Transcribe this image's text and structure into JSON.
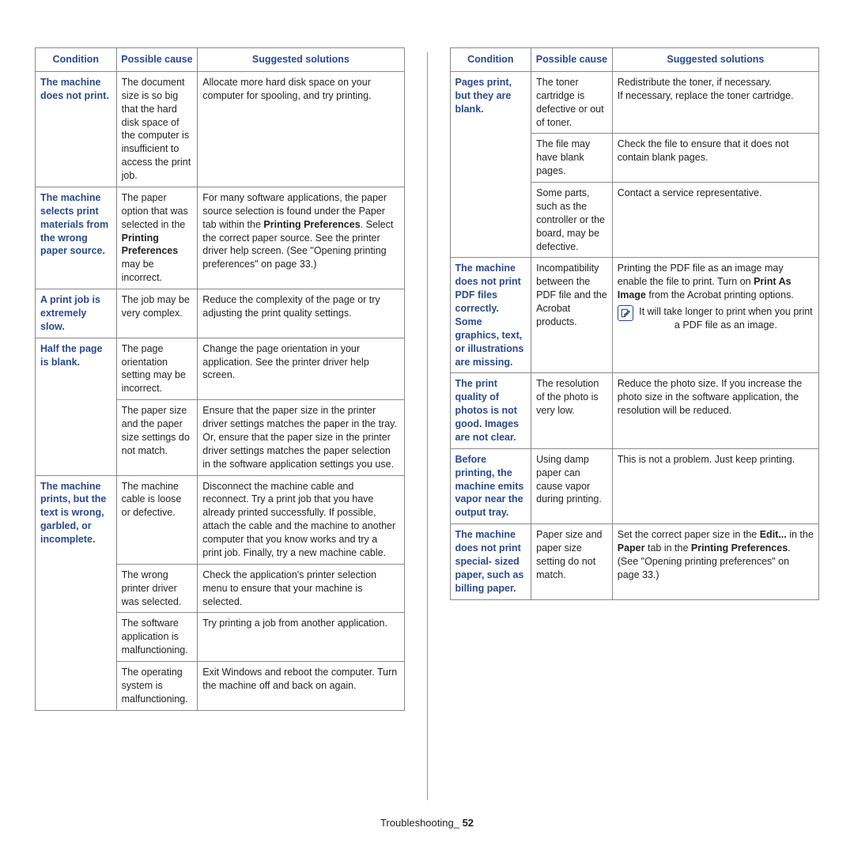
{
  "colors": {
    "heading": "#2a4a8a",
    "text": "#222222",
    "border": "#888888",
    "background": "#ffffff"
  },
  "fonts": {
    "family": "Arial, Helvetica, sans-serif",
    "body_size_pt": 9,
    "heading_size_pt": 9
  },
  "headers": {
    "condition": "Condition",
    "cause": "Possible cause",
    "solution": "Suggested solutions"
  },
  "footer": {
    "section": "Troubleshooting",
    "page": "52"
  },
  "left_table": [
    {
      "condition": "The machine does not print.",
      "rows": [
        {
          "cause": "The document size is so big that the hard disk space of the computer is insufficient to access the print job.",
          "solution": "Allocate more hard disk space on your computer for spooling, and try printing."
        }
      ]
    },
    {
      "condition": "The machine selects print materials from the wrong paper source.",
      "rows": [
        {
          "cause_html": "The paper option that was selected in the <b>Printing Preferences</b> may be incorrect.",
          "solution_html": "For many software applications, the paper source selection is found under the Paper tab within the <b>Printing Preferences</b>. Select the correct paper source. See the printer driver help screen. (See \"Opening printing preferences\" on page 33.)"
        }
      ]
    },
    {
      "condition": "A print job is extremely slow.",
      "rows": [
        {
          "cause": "The job may be very complex.",
          "solution": "Reduce the complexity of the page or try adjusting the print quality settings."
        }
      ]
    },
    {
      "condition": "Half the page is blank.",
      "rows": [
        {
          "cause": "The page orientation setting may be incorrect.",
          "solution": "Change the page orientation in your application. See the printer driver help screen."
        },
        {
          "cause": "The paper size and the paper size settings do not match.",
          "solution": "Ensure that the paper size in the printer driver settings matches the paper in the tray.\nOr, ensure that the paper size in the printer driver settings matches the paper selection in the software application settings you use."
        }
      ]
    },
    {
      "condition": "The machine prints, but the text is wrong, garbled, or incomplete.",
      "rows": [
        {
          "cause": "The machine cable is loose or defective.",
          "solution": "Disconnect the machine cable and reconnect. Try a print job that you have already printed successfully. If possible, attach the cable and the machine to another computer that you know works and try a print job. Finally, try a new machine cable."
        },
        {
          "cause": "The wrong printer driver was selected.",
          "solution": "Check the application's printer selection menu to ensure that your machine is selected."
        },
        {
          "cause": "The software application is malfunctioning.",
          "solution": "Try printing a job from another application."
        },
        {
          "cause": "The operating system is malfunctioning.",
          "solution": "Exit Windows and reboot the computer. Turn the machine off and back on again."
        }
      ]
    }
  ],
  "right_table": [
    {
      "condition": "Pages print, but they are blank.",
      "rows": [
        {
          "cause": "The toner cartridge is defective or out of toner.",
          "solution": "Redistribute the toner, if necessary.\nIf necessary, replace the toner cartridge."
        },
        {
          "cause": "The file may have blank pages.",
          "solution": "Check the file to ensure that it does not contain blank pages."
        },
        {
          "cause": "Some parts, such as the controller or the board, may be defective.",
          "solution": "Contact a service representative."
        }
      ]
    },
    {
      "condition": "The machine does not print PDF files correctly. Some graphics, text, or illustrations are missing.",
      "rows": [
        {
          "cause": "Incompatibility between the PDF file and the Acrobat products.",
          "solution_html": "Printing the PDF file as an image may enable the file to print. Turn on <b>Print As Image</b> from the Acrobat printing options.",
          "note": "It will take longer to print when you print a PDF file as an image."
        }
      ]
    },
    {
      "condition": "The print quality of photos is not good. Images are not clear.",
      "rows": [
        {
          "cause": "The resolution of the photo is very low.",
          "solution": "Reduce the photo size. If you increase the photo size in the software application, the resolution will be reduced."
        }
      ]
    },
    {
      "condition": "Before printing, the machine emits vapor near the output tray.",
      "rows": [
        {
          "cause": "Using damp paper can cause vapor during printing.",
          "solution": "This is not a problem. Just keep printing."
        }
      ]
    },
    {
      "condition": "The machine does not print special- sized paper, such as billing paper.",
      "rows": [
        {
          "cause": "Paper size and paper size setting do not match.",
          "solution_html": "Set the correct paper size in the <b>Edit...</b> in the <b>Paper</b> tab in the <b>Printing Preferences</b>. (See \"Opening printing preferences\" on page 33.)"
        }
      ]
    }
  ]
}
